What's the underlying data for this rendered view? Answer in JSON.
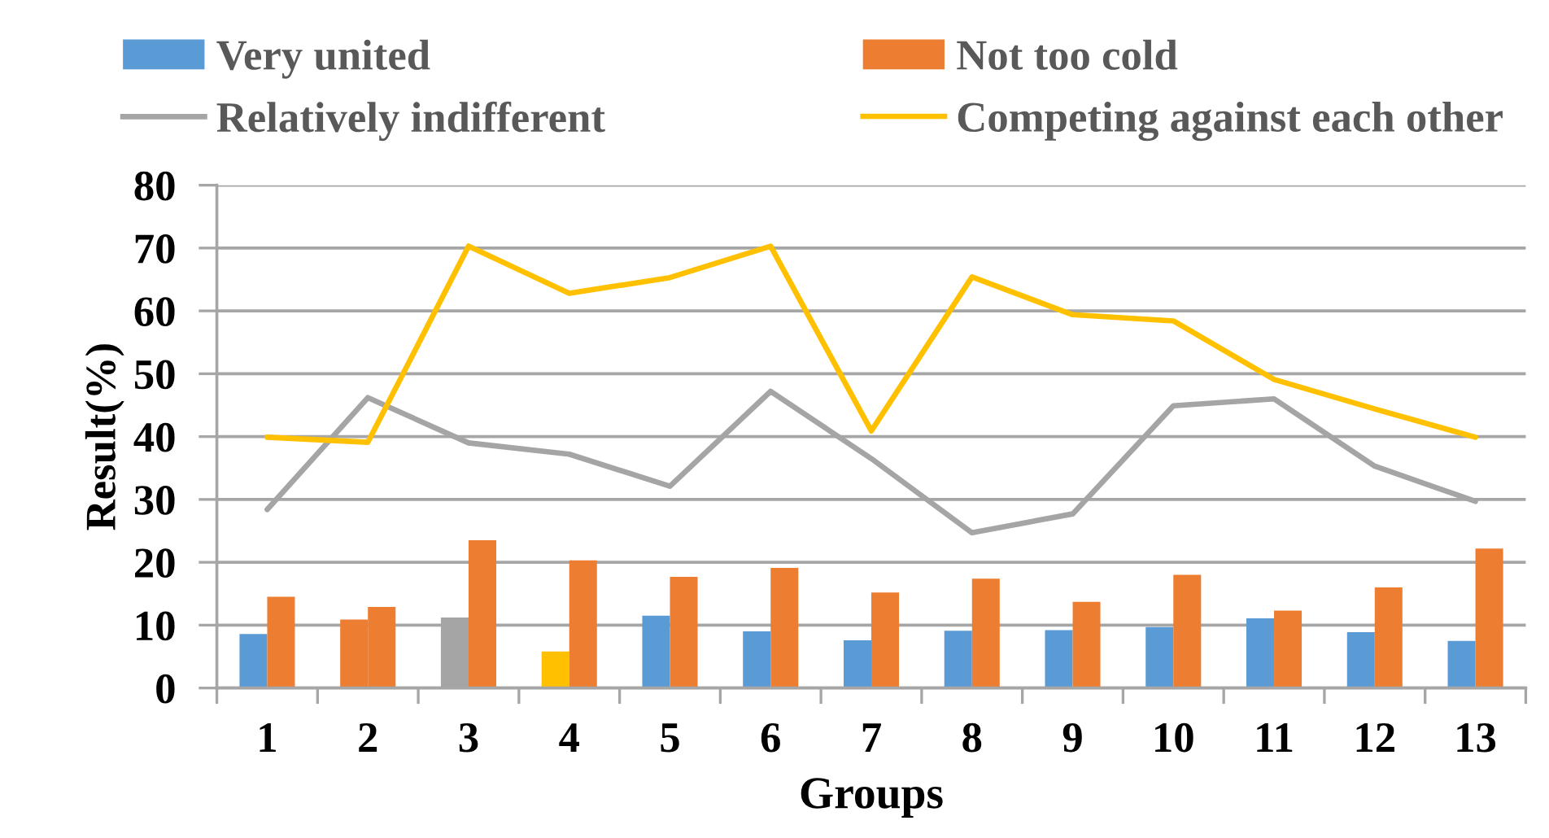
{
  "chart_data": {
    "type": "bar",
    "xlabel": "Groups",
    "ylabel": "Result(%)",
    "categories": [
      "1",
      "2",
      "3",
      "4",
      "5",
      "6",
      "7",
      "8",
      "9",
      "10",
      "11",
      "12",
      "13"
    ],
    "series": [
      {
        "name": "Very united",
        "color": "#5b9bd5",
        "colors": [
          "#5b9bd5",
          "#ed7d31",
          "#a5a5a5",
          "#ffc000",
          "#5b9bd5",
          "#5b9bd5",
          "#5b9bd5",
          "#5b9bd5",
          "#5b9bd5",
          "#5b9bd5",
          "#5b9bd5",
          "#5b9bd5",
          "#5b9bd5"
        ],
        "values": [
          8.6,
          10.9,
          11.2,
          5.8,
          11.5,
          9.0,
          7.6,
          9.1,
          9.2,
          9.7,
          11.1,
          8.9,
          7.5
        ]
      },
      {
        "name": "Not too cold",
        "color": "#ed7d31",
        "values": [
          14.5,
          12.9,
          23.5,
          20.3,
          17.7,
          19.1,
          15.2,
          17.4,
          13.7,
          18.0,
          12.3,
          16.0,
          22.2
        ]
      },
      {
        "name": "Relatively indifferent",
        "type": "line",
        "color": "#a5a5a5",
        "values": [
          28.4,
          46.2,
          39.0,
          37.2,
          32.1,
          47.2,
          36.5,
          24.7,
          27.7,
          44.9,
          46.0,
          35.3,
          29.7
        ]
      },
      {
        "name": "Competing against each other",
        "type": "line",
        "color": "#ffc000",
        "values": [
          39.9,
          39.1,
          70.3,
          62.8,
          65.3,
          70.3,
          40.9,
          65.4,
          59.4,
          58.4,
          49.1,
          44.4,
          39.9
        ]
      }
    ],
    "ylim": [
      0,
      80
    ],
    "yticks": [
      0,
      10,
      20,
      30,
      40,
      50,
      60,
      70,
      80
    ],
    "grid": "y",
    "legend": "top",
    "line_style": "solid"
  }
}
